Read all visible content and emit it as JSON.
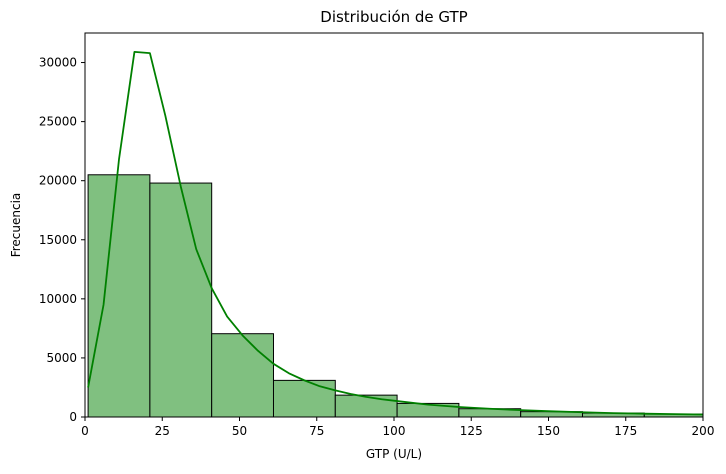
{
  "chart_data": {
    "type": "bar",
    "subtype": "histogram-with-kde",
    "title": "Distribución de GTP",
    "xlabel": "GTP (U/L)",
    "ylabel": "Frecuencia",
    "xlim": [
      0,
      200
    ],
    "ylim": [
      0,
      32500
    ],
    "x_ticks": [
      0,
      25,
      50,
      75,
      100,
      125,
      150,
      175,
      200
    ],
    "y_ticks": [
      0,
      5000,
      10000,
      15000,
      20000,
      25000,
      30000
    ],
    "grid": false,
    "legend": "none",
    "bar_color": "#80c080",
    "bar_edge_color": "#000000",
    "kde_color": "#008000",
    "bins": [
      {
        "x0": 1,
        "x1": 21,
        "count": 20500
      },
      {
        "x0": 21,
        "x1": 41,
        "count": 19800
      },
      {
        "x0": 41,
        "x1": 61,
        "count": 7050
      },
      {
        "x0": 61,
        "x1": 81,
        "count": 3100
      },
      {
        "x0": 81,
        "x1": 101,
        "count": 1850
      },
      {
        "x0": 101,
        "x1": 121,
        "count": 1150
      },
      {
        "x0": 121,
        "x1": 141,
        "count": 700
      },
      {
        "x0": 141,
        "x1": 161,
        "count": 450
      },
      {
        "x0": 161,
        "x1": 181,
        "count": 330
      },
      {
        "x0": 181,
        "x1": 201,
        "count": 250
      }
    ],
    "kde": {
      "x": [
        1,
        6,
        11,
        16,
        21,
        26,
        31,
        36,
        41,
        46,
        51,
        56,
        61,
        66,
        71,
        76,
        81,
        86,
        91,
        96,
        101,
        111,
        121,
        131,
        141,
        151,
        161,
        171,
        181,
        191,
        200
      ],
      "y": [
        2500,
        9500,
        21800,
        30900,
        30800,
        25500,
        19500,
        14200,
        10900,
        8500,
        6900,
        5600,
        4500,
        3700,
        3100,
        2600,
        2250,
        1950,
        1700,
        1500,
        1350,
        1050,
        850,
        700,
        580,
        480,
        400,
        330,
        280,
        240,
        210
      ]
    }
  }
}
